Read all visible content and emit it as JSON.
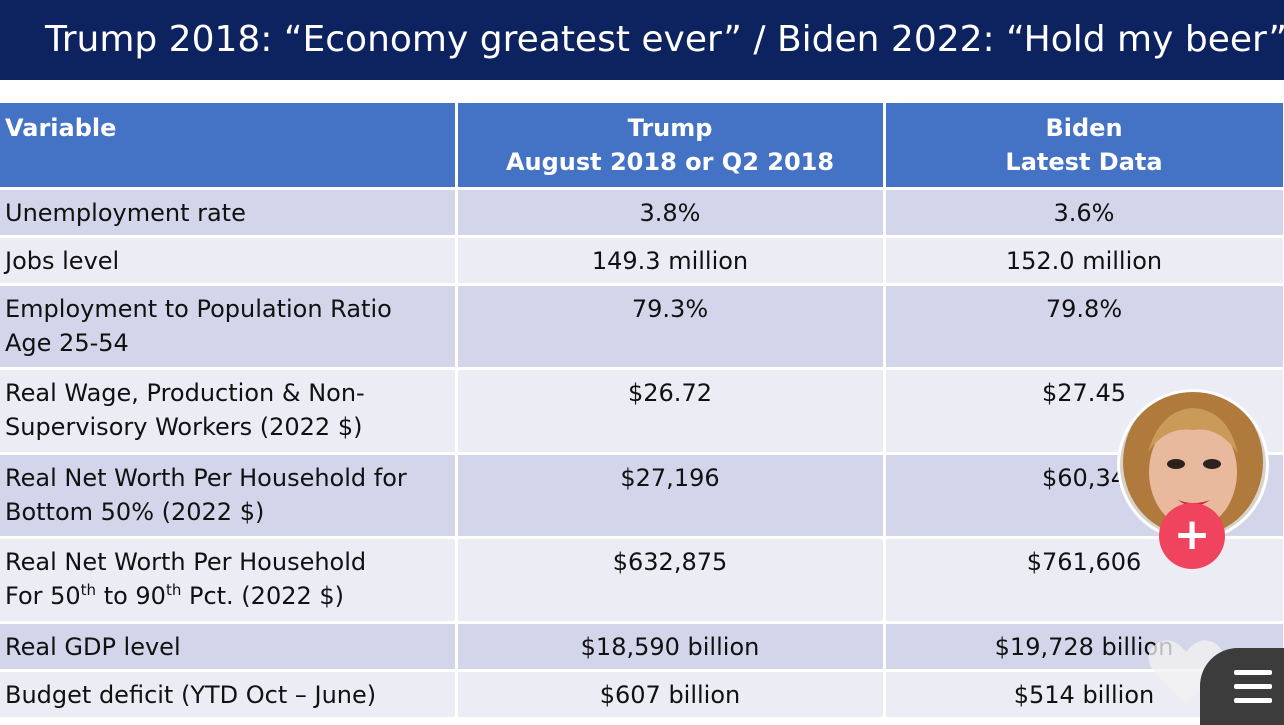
{
  "banner": {
    "title": "Trump 2018:  “Economy greatest ever” / Biden 2022:  “Hold my beer”"
  },
  "table": {
    "headers": {
      "variable": "Variable",
      "trump_line1": "Trump",
      "trump_line2": "August 2018 or Q2 2018",
      "biden_line1": "Biden",
      "biden_line2": "Latest Data"
    },
    "rows": [
      {
        "variable": "Unemployment rate",
        "trump": "3.8%",
        "biden": "3.6%"
      },
      {
        "variable": "Jobs level",
        "trump": "149.3 million",
        "biden": "152.0 million"
      },
      {
        "variable_line1": "Employment to Population Ratio",
        "variable_line2": "Age 25-54",
        "trump": "79.3%",
        "biden": "79.8%"
      },
      {
        "variable_line1": "Real Wage, Production & Non-",
        "variable_line2": "Supervisory Workers (2022 $)",
        "trump": "$26.72",
        "biden": "$27.45"
      },
      {
        "variable_line1": "Real Net Worth Per Household for",
        "variable_line2": "Bottom 50% (2022 $)",
        "trump": "$27,196",
        "biden": "$60,34"
      },
      {
        "variable_line1": "Real Net Worth Per Household",
        "variable_line2_a": "For 50",
        "variable_line2_sup1": "th",
        "variable_line2_b": " to 90",
        "variable_line2_sup2": "th",
        "variable_line2_c": " Pct. (2022 $)",
        "trump": "$632,875",
        "biden": "$761,606"
      },
      {
        "variable": "Real GDP level",
        "trump": "$18,590 billion",
        "biden": "$19,728 billion"
      },
      {
        "variable": "Budget deficit (YTD Oct – June)",
        "trump": "$607 billion",
        "biden": "$514 billion"
      }
    ]
  },
  "overlay": {
    "follow_symbol": "+",
    "icons": [
      "avatar",
      "plus-icon",
      "heart-icon",
      "menu-icon"
    ]
  },
  "colors": {
    "banner_bg": "#0d2360",
    "header_bg": "#4472c4",
    "row_odd": "#d3d6ea",
    "row_even": "#ebecf4",
    "follow_button": "#f0435e"
  }
}
